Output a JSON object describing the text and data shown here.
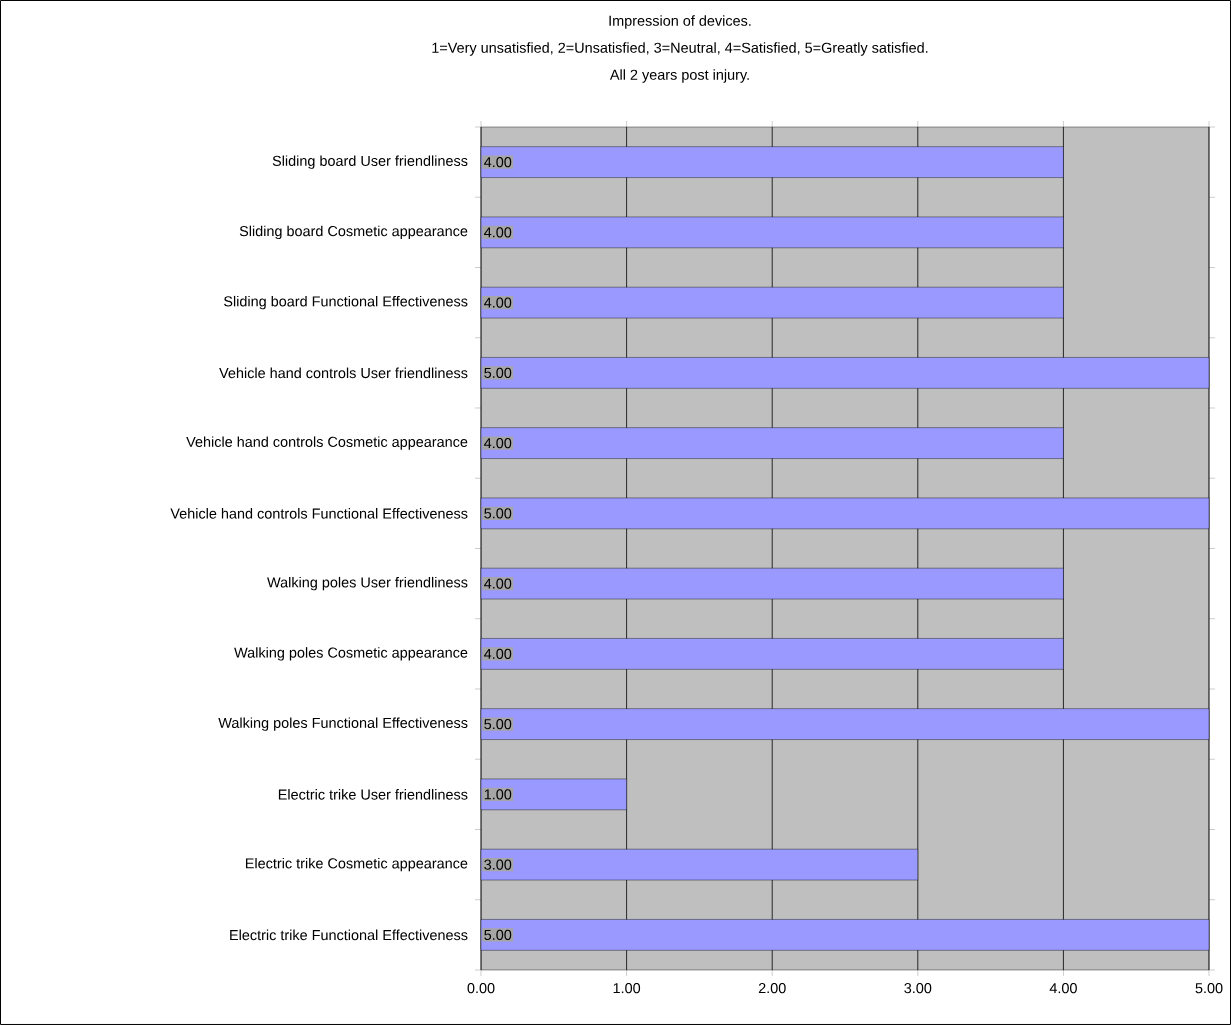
{
  "chart_data": {
    "type": "bar",
    "orientation": "horizontal",
    "title": "Impression of devices.",
    "subtitle": "1=Very unsatisfied, 2=Unsatisfied, 3=Neutral, 4=Satisfied, 5=Greatly satisfied.",
    "annotations": [
      "All 2 years post injury."
    ],
    "categories": [
      "Sliding board User friendliness",
      "Sliding board Cosmetic appearance",
      "Sliding board Functional Effectiveness",
      "Vehicle hand controls User friendliness",
      "Vehicle hand controls Cosmetic appearance",
      "Vehicle hand controls Functional Effectiveness",
      "Walking poles User friendliness",
      "Walking poles Cosmetic appearance",
      "Walking poles Functional Effectiveness",
      "Electric trike User friendliness",
      "Electric trike Cosmetic appearance",
      "Electric trike Functional Effectiveness"
    ],
    "values": [
      4,
      4,
      4,
      5,
      4,
      5,
      4,
      4,
      5,
      1,
      3,
      5
    ],
    "value_labels": [
      "4.00",
      "4.00",
      "4.00",
      "5.00",
      "4.00",
      "5.00",
      "4.00",
      "4.00",
      "5.00",
      "1.00",
      "3.00",
      "5.00"
    ],
    "color": "#9999ff",
    "xlim": [
      0,
      5
    ],
    "xticks": [
      {
        "value": 0,
        "label": "0.00"
      },
      {
        "value": 1,
        "label": "1.00"
      },
      {
        "value": 2,
        "label": "2.00"
      },
      {
        "value": 3,
        "label": "3.00"
      },
      {
        "value": 4,
        "label": "4.00"
      },
      {
        "value": 5,
        "label": "5.00"
      }
    ],
    "grid": "x"
  }
}
